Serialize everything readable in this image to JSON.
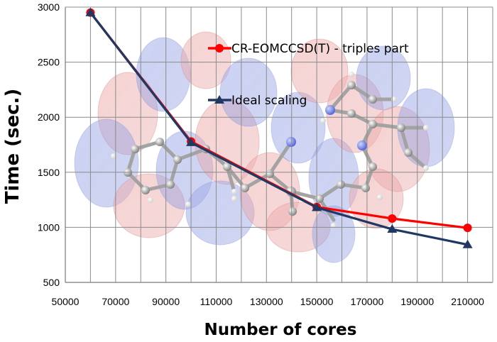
{
  "chart_data": {
    "type": "line",
    "title": "",
    "xlabel": "Number of cores",
    "ylabel": "Time (sec.)",
    "xlim": [
      50000,
      220000
    ],
    "ylim": [
      500,
      3000
    ],
    "xticks": [
      50000,
      70000,
      90000,
      110000,
      130000,
      150000,
      170000,
      190000,
      210000
    ],
    "yticks": [
      500,
      1000,
      1500,
      2000,
      2500,
      3000
    ],
    "grid": true,
    "legend_position": "inside-top-right",
    "series": [
      {
        "name": "CR-EOMCCSD(T) - triples part",
        "color": "#ff0000",
        "marker": "circle",
        "x": [
          60000,
          100000,
          150000,
          180000,
          210000
        ],
        "y": [
          2950,
          1780,
          1185,
          1080,
          995
        ]
      },
      {
        "name": "Ideal scaling",
        "color": "#1f3864",
        "marker": "triangle",
        "x": [
          60000,
          100000,
          150000,
          180000,
          210000
        ],
        "y": [
          2950,
          1770,
          1180,
          983,
          843
        ]
      }
    ],
    "background_image": "molecular-orbital-isosurface"
  }
}
